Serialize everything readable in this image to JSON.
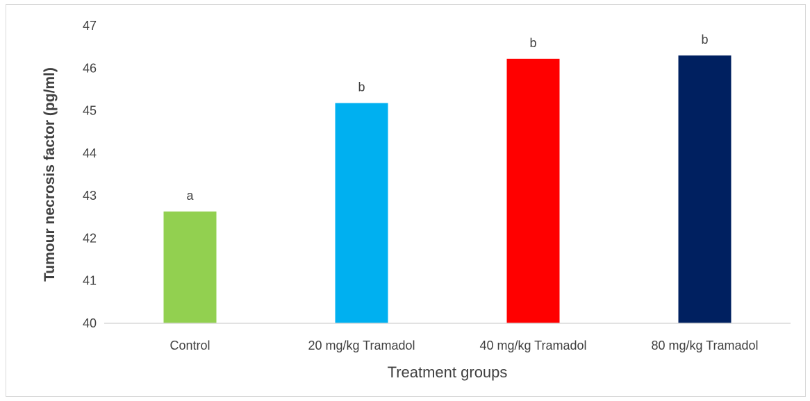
{
  "chart_data": {
    "type": "bar",
    "categories": [
      "Control",
      "20 mg/kg Tramadol",
      "40 mg/kg Tramadol",
      "80 mg/kg Tramadol"
    ],
    "values": [
      42.63,
      45.18,
      46.22,
      46.3
    ],
    "data_labels": [
      "a",
      "b",
      "b",
      "b"
    ],
    "colors": [
      "#92d050",
      "#00b0f0",
      "#ff0000",
      "#002060"
    ],
    "title": "",
    "xlabel": "Treatment groups",
    "ylabel": "Tumour necrosis factor (pg/ml)",
    "ylim": [
      40,
      47
    ],
    "yticks": [
      40,
      41,
      42,
      43,
      44,
      45,
      46,
      47
    ],
    "grid": false,
    "legend": "none"
  }
}
